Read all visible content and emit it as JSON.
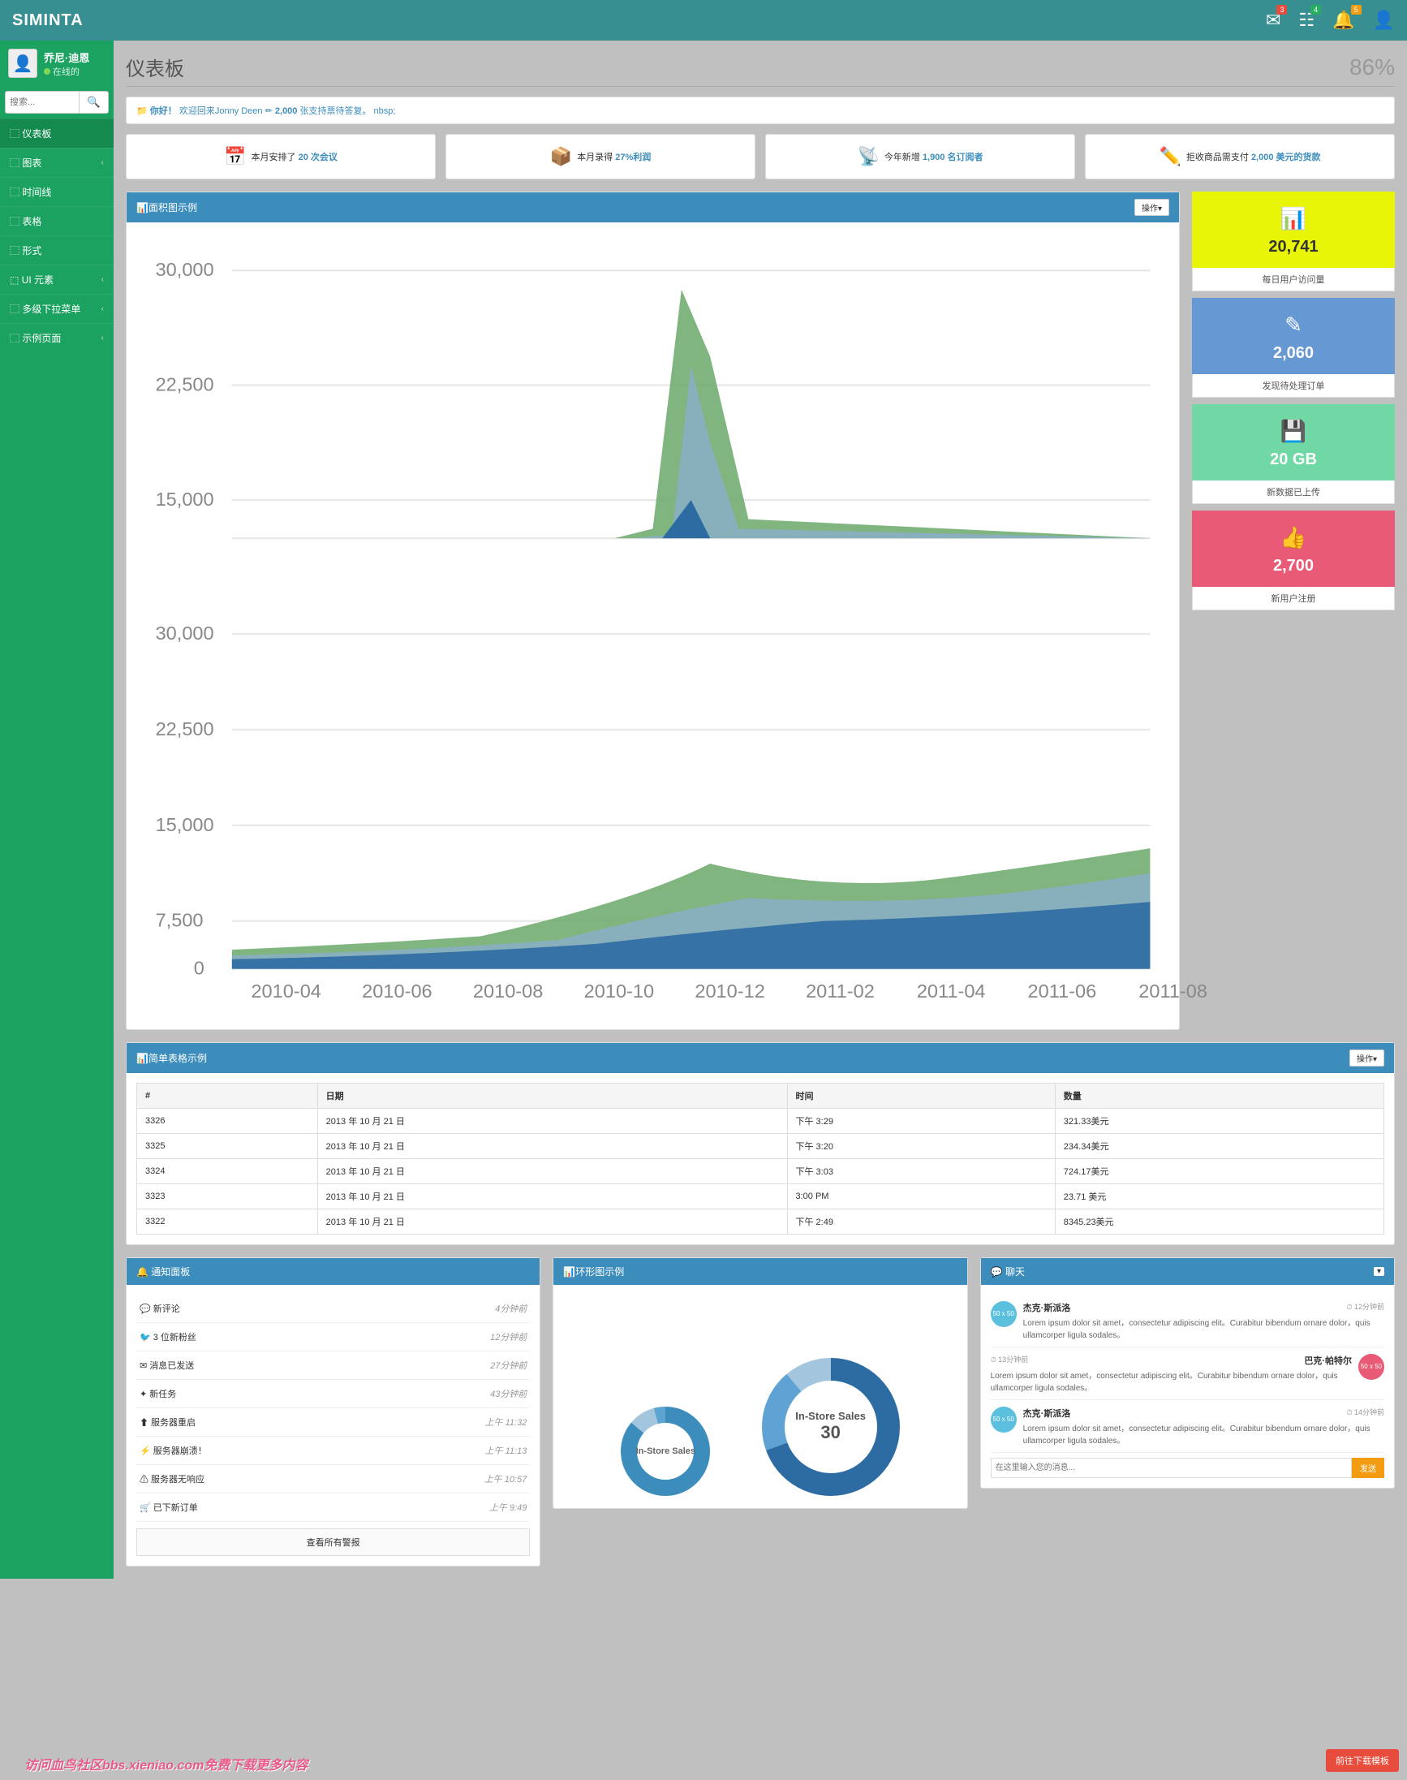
{
  "brand": "SIMINTA",
  "top_badges": {
    "mail": "3",
    "tasks": "4",
    "bell": "5"
  },
  "user": {
    "name": "乔尼·迪恩",
    "status": "在线的"
  },
  "search_placeholder": "搜索...",
  "nav": [
    {
      "label": "仪表板",
      "has_sub": false,
      "active": true
    },
    {
      "label": "图表",
      "has_sub": true
    },
    {
      "label": "时间线",
      "has_sub": false
    },
    {
      "label": "表格",
      "has_sub": false
    },
    {
      "label": "形式",
      "has_sub": false
    },
    {
      "label": "UI 元素",
      "has_sub": true
    },
    {
      "label": "多级下拉菜单",
      "has_sub": true
    },
    {
      "label": "示例页面",
      "has_sub": true
    }
  ],
  "page": {
    "title": "仪表板",
    "percent": "86%"
  },
  "welcome": {
    "prefix": "你好！",
    "text": "欢迎回来Jonny Deen",
    "count": "2,000",
    "suffix": "张支持票待答复。 nbsp;"
  },
  "stats": [
    {
      "pre": "本月安排了",
      "num": "20 次会议",
      "icon": "📅"
    },
    {
      "pre": "本月录得",
      "num": "27%利润",
      "icon": "📦"
    },
    {
      "pre": "今年新增",
      "num": "1,900 名订阅者",
      "icon": "📡"
    },
    {
      "pre": "拒收商品需支付",
      "num": "2,000 美元的货款",
      "icon": "✏️"
    }
  ],
  "area_chart": {
    "title": "面积图示例",
    "op_label": "操作▾",
    "xlabels": [
      "2010-04",
      "2010-06",
      "2010-08",
      "2010-10",
      "2010-12",
      "2011-02",
      "2011-04",
      "2011-06",
      "2011-08"
    ],
    "yticks_top": [
      30000,
      22500,
      15000
    ],
    "yticks_bot": [
      30000,
      22500,
      15000,
      7500,
      0
    ],
    "colors": {
      "fill1": "#6aa86a",
      "fill2": "#8aaec7",
      "fill3": "#2d6ca2",
      "grid": "#e8e8e8"
    }
  },
  "tiles": [
    {
      "klass": "tile-yellow",
      "icon": "📊",
      "val": "20,741",
      "foot": "每日用户访问量"
    },
    {
      "klass": "tile-blue",
      "icon": "✎",
      "val": "2,060",
      "foot": "发现待处理订单"
    },
    {
      "klass": "tile-green",
      "icon": "💾",
      "val": "20 GB",
      "foot": "新数据已上传"
    },
    {
      "klass": "tile-pink",
      "icon": "👍",
      "val": "2,700",
      "foot": "新用户注册"
    }
  ],
  "table_panel": {
    "title": "简单表格示例",
    "op_label": "操作▾",
    "cols": [
      "#",
      "日期",
      "时间",
      "数量"
    ],
    "rows": [
      [
        "3326",
        "2013 年 10 月 21 日",
        "下午 3:29",
        "321.33美元"
      ],
      [
        "3325",
        "2013 年 10 月 21 日",
        "下午 3:20",
        "234.34美元"
      ],
      [
        "3324",
        "2013 年 10 月 21 日",
        "下午 3:03",
        "724.17美元"
      ],
      [
        "3323",
        "2013 年 10 月 21 日",
        "3:00 PM",
        "23.71 美元"
      ],
      [
        "3322",
        "2013 年 10 月 21 日",
        "下午 2:49",
        "8345.23美元"
      ]
    ]
  },
  "notif_panel": {
    "title": "通知面板",
    "items": [
      {
        "txt": "新评论",
        "time": "4分钟前"
      },
      {
        "txt": "3 位新粉丝",
        "time": "12分钟前"
      },
      {
        "txt": "消息已发送",
        "time": "27分钟前"
      },
      {
        "txt": "新任务",
        "time": "43分钟前"
      },
      {
        "txt": "服务器重启",
        "time": "上午 11:32"
      },
      {
        "txt": "服务器崩溃！",
        "time": "上午 11:13"
      },
      {
        "txt": "服务器无响应",
        "time": "上午 10:57"
      },
      {
        "txt": "已下新订单",
        "time": "上午 9:49"
      }
    ],
    "view_all": "查看所有警报"
  },
  "donut_panel": {
    "title": "环形图示例",
    "label1": "In-Store Sales",
    "label2": "In-Store Sales",
    "value2": "30"
  },
  "chat_panel": {
    "title": "聊天",
    "msgs": [
      {
        "side": "l",
        "name": "杰克·斯派洛",
        "time": "12分钟前",
        "avbg": "#5bc0de",
        "txt": "Lorem ipsum dolor sit amet，consectetur adipiscing elit。Curabitur bibendum ornare dolor，quis ullamcorper ligula sodales。"
      },
      {
        "side": "r",
        "name": "巴克·帕特尔",
        "time": "13分钟前",
        "avbg": "#e85a75",
        "txt": "Lorem ipsum dolor sit amet，consectetur adipiscing elit。Curabitur bibendum ornare dolor，quis ullamcorper ligula sodales。"
      },
      {
        "side": "l",
        "name": "杰克·斯派洛",
        "time": "14分钟前",
        "avbg": "#5bc0de",
        "txt": "Lorem ipsum dolor sit amet，consectetur adipiscing elit。Curabitur bibendum ornare dolor，quis ullamcorper ligula sodales。"
      }
    ],
    "input_placeholder": "在这里输入您的消息...",
    "send": "发送"
  },
  "footer_btn": "前往下载模板",
  "watermark": "访问血鸟社区bbs.xieniao.com免费下载更多内容"
}
